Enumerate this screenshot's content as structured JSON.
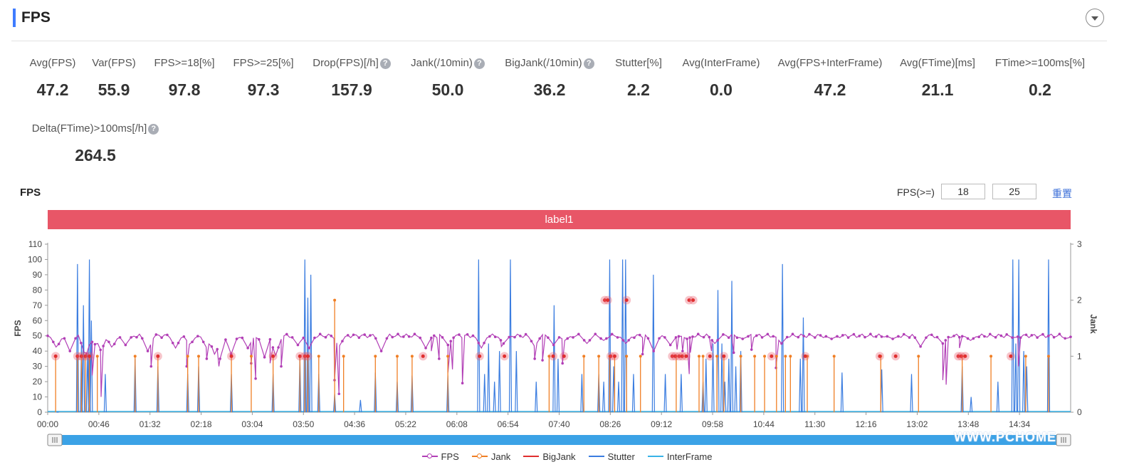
{
  "header": {
    "title": "FPS"
  },
  "metrics": [
    {
      "label": "Avg(FPS)",
      "value": "47.2",
      "help": false
    },
    {
      "label": "Var(FPS)",
      "value": "55.9",
      "help": false
    },
    {
      "label": "FPS>=18[%]",
      "value": "97.8",
      "help": false
    },
    {
      "label": "FPS>=25[%]",
      "value": "97.3",
      "help": false
    },
    {
      "label": "Drop(FPS)[/h]",
      "value": "157.9",
      "help": true
    },
    {
      "label": "Jank(/10min)",
      "value": "50.0",
      "help": true
    },
    {
      "label": "BigJank(/10min)",
      "value": "36.2",
      "help": true
    },
    {
      "label": "Stutter[%]",
      "value": "2.2",
      "help": false
    },
    {
      "label": "Avg(InterFrame)",
      "value": "0.0",
      "help": false
    },
    {
      "label": "Avg(FPS+InterFrame)",
      "value": "47.2",
      "help": false
    },
    {
      "label": "Avg(FTime)[ms]",
      "value": "21.1",
      "help": false
    },
    {
      "label": "FTime>=100ms[%]",
      "value": "0.2",
      "help": false
    },
    {
      "label": "Delta(FTime)>100ms[/h]",
      "value": "264.5",
      "help": true
    }
  ],
  "help_glyph": "?",
  "chart_panel": {
    "title": "FPS",
    "threshold_label": "FPS(>=)",
    "threshold_low": "18",
    "threshold_high": "25",
    "reset_label": "重置",
    "label_bar": "label1"
  },
  "watermark": "WWW.PCHOME",
  "chart_data": {
    "type": "line",
    "ylabel": "FPS",
    "y2label": "Jank",
    "ylim": [
      0,
      110
    ],
    "y2lim": [
      0,
      3
    ],
    "yticks": [
      0,
      10,
      20,
      30,
      40,
      50,
      60,
      70,
      80,
      90,
      100,
      110
    ],
    "y2ticks": [
      0,
      1,
      2,
      3
    ],
    "xlim_seconds": [
      0,
      920
    ],
    "xticks": [
      "00:00",
      "00:46",
      "01:32",
      "02:18",
      "03:04",
      "03:50",
      "04:36",
      "05:22",
      "06:08",
      "06:54",
      "07:40",
      "08:26",
      "09:12",
      "09:58",
      "10:44",
      "11:30",
      "12:16",
      "13:02",
      "13:48",
      "14:34"
    ],
    "grid": false,
    "legend_position": "bottom",
    "series_styles": [
      {
        "name": "FPS",
        "color": "#b23fb6",
        "axis": "left"
      },
      {
        "name": "Jank",
        "color": "#f07f25",
        "axis": "right"
      },
      {
        "name": "BigJank",
        "color": "#e02f2f",
        "axis": "right"
      },
      {
        "name": "Stutter",
        "color": "#3b7de0",
        "axis": "left"
      },
      {
        "name": "InterFrame",
        "color": "#38b3e8",
        "axis": "left"
      }
    ],
    "fps_baseline": 50,
    "fps_dips": [
      [
        8,
        42
      ],
      [
        20,
        40
      ],
      [
        34,
        36
      ],
      [
        42,
        44
      ],
      [
        48,
        40
      ],
      [
        58,
        42
      ],
      [
        70,
        44
      ],
      [
        90,
        40
      ],
      [
        115,
        42
      ],
      [
        128,
        44
      ],
      [
        143,
        42
      ],
      [
        150,
        38
      ],
      [
        155,
        35
      ],
      [
        165,
        38
      ],
      [
        180,
        42
      ],
      [
        195,
        36
      ],
      [
        205,
        37
      ],
      [
        225,
        44
      ],
      [
        235,
        42
      ],
      [
        262,
        43
      ],
      [
        300,
        40
      ],
      [
        340,
        42
      ],
      [
        360,
        44
      ],
      [
        390,
        42
      ],
      [
        410,
        45
      ],
      [
        438,
        43
      ],
      [
        455,
        44
      ],
      [
        465,
        47
      ],
      [
        485,
        45
      ],
      [
        500,
        47
      ],
      [
        520,
        45
      ],
      [
        545,
        40
      ],
      [
        560,
        44
      ],
      [
        575,
        48
      ],
      [
        600,
        45
      ],
      [
        625,
        48
      ],
      [
        660,
        45
      ],
      [
        705,
        48
      ],
      [
        760,
        48
      ],
      [
        785,
        43
      ],
      [
        805,
        45
      ],
      [
        830,
        47
      ],
      [
        870,
        49
      ],
      [
        916,
        48
      ]
    ],
    "fps_drops": [
      [
        40,
        24
      ],
      [
        48,
        10
      ],
      [
        93,
        30
      ],
      [
        125,
        30
      ],
      [
        143,
        35
      ],
      [
        154,
        30
      ],
      [
        183,
        32
      ],
      [
        187,
        22
      ],
      [
        200,
        32
      ],
      [
        210,
        30
      ],
      [
        258,
        21
      ],
      [
        262,
        12
      ],
      [
        345,
        40
      ],
      [
        352,
        35
      ],
      [
        360,
        26
      ],
      [
        364,
        28
      ],
      [
        373,
        19
      ],
      [
        408,
        43
      ],
      [
        438,
        35
      ],
      [
        445,
        34
      ],
      [
        463,
        32
      ],
      [
        535,
        38
      ],
      [
        566,
        41
      ],
      [
        571,
        40
      ],
      [
        577,
        25
      ],
      [
        578,
        39
      ],
      [
        597,
        40
      ],
      [
        617,
        39
      ],
      [
        633,
        41
      ],
      [
        655,
        29
      ],
      [
        805,
        21
      ],
      [
        808,
        18
      ],
      [
        820,
        42
      ],
      [
        873,
        30
      ]
    ],
    "jank_points": [
      [
        8,
        1
      ],
      [
        30,
        1
      ],
      [
        34,
        1
      ],
      [
        38,
        1
      ],
      [
        42,
        1
      ],
      [
        50,
        1
      ],
      [
        88,
        1
      ],
      [
        111,
        1
      ],
      [
        141,
        1
      ],
      [
        152,
        1
      ],
      [
        185,
        1
      ],
      [
        205,
        1
      ],
      [
        227,
        1
      ],
      [
        254,
        1
      ],
      [
        259,
        1
      ],
      [
        262,
        1
      ],
      [
        298,
        1
      ],
      [
        273,
        1
      ],
      [
        289,
        2
      ],
      [
        330,
        1
      ],
      [
        352,
        1
      ],
      [
        367,
        1
      ],
      [
        403,
        1
      ],
      [
        505,
        1
      ],
      [
        540,
        1
      ],
      [
        555,
        1
      ],
      [
        566,
        1
      ],
      [
        571,
        1
      ],
      [
        583,
        1
      ],
      [
        597,
        1
      ],
      [
        633,
        1
      ],
      [
        656,
        1
      ],
      [
        660,
        1
      ],
      [
        674,
        1
      ],
      [
        681,
        1
      ],
      [
        698,
        1
      ],
      [
        712,
        1
      ],
      [
        722,
        1
      ],
      [
        734,
        1
      ],
      [
        743,
        1
      ],
      [
        748,
        1
      ],
      [
        765,
        1
      ],
      [
        792,
        1
      ],
      [
        839,
        1
      ],
      [
        877,
        1
      ],
      [
        921,
        1
      ],
      [
        950,
        1
      ],
      [
        985,
        1
      ],
      [
        1008,
        1
      ]
    ],
    "bigjank_points": [
      [
        8,
        1
      ],
      [
        30,
        1
      ],
      [
        34,
        1
      ],
      [
        38,
        1
      ],
      [
        42,
        1
      ],
      [
        111,
        1
      ],
      [
        185,
        1
      ],
      [
        227,
        1
      ],
      [
        254,
        1
      ],
      [
        259,
        1
      ],
      [
        262,
        1
      ],
      [
        378,
        1
      ],
      [
        435,
        1
      ],
      [
        460,
        1
      ],
      [
        509,
        1
      ],
      [
        520,
        1
      ],
      [
        561,
        2
      ],
      [
        564,
        2
      ],
      [
        567,
        1
      ],
      [
        571,
        1
      ],
      [
        583,
        2
      ],
      [
        629,
        1
      ],
      [
        632,
        1
      ],
      [
        636,
        1
      ],
      [
        639,
        1
      ],
      [
        643,
        1
      ],
      [
        646,
        2
      ],
      [
        650,
        2
      ],
      [
        667,
        1
      ],
      [
        681,
        1
      ],
      [
        729,
        1
      ],
      [
        763,
        1
      ],
      [
        838,
        1
      ],
      [
        854,
        1
      ],
      [
        917,
        1
      ],
      [
        920,
        1
      ],
      [
        924,
        1
      ],
      [
        970,
        1
      ]
    ],
    "stutter_spikes": [
      [
        10,
        0
      ],
      [
        30,
        97
      ],
      [
        34,
        45
      ],
      [
        36,
        70
      ],
      [
        40,
        40
      ],
      [
        42,
        100
      ],
      [
        44,
        60
      ],
      [
        58,
        25
      ],
      [
        88,
        35
      ],
      [
        111,
        30
      ],
      [
        141,
        25
      ],
      [
        152,
        30
      ],
      [
        185,
        25
      ],
      [
        227,
        25
      ],
      [
        254,
        36
      ],
      [
        259,
        100
      ],
      [
        262,
        75
      ],
      [
        265,
        90
      ],
      [
        273,
        25
      ],
      [
        289,
        12
      ],
      [
        315,
        8
      ],
      [
        330,
        26
      ],
      [
        352,
        20
      ],
      [
        367,
        24
      ],
      [
        403,
        24
      ],
      [
        434,
        100
      ],
      [
        440,
        25
      ],
      [
        444,
        45
      ],
      [
        450,
        20
      ],
      [
        455,
        40
      ],
      [
        466,
        100
      ],
      [
        472,
        40
      ],
      [
        492,
        20
      ],
      [
        510,
        70
      ],
      [
        514,
        35
      ],
      [
        538,
        25
      ],
      [
        555,
        25
      ],
      [
        560,
        20
      ],
      [
        566,
        100
      ],
      [
        570,
        30
      ],
      [
        575,
        20
      ],
      [
        579,
        100
      ],
      [
        582,
        100
      ],
      [
        590,
        25
      ],
      [
        610,
        90
      ],
      [
        622,
        25
      ],
      [
        638,
        25
      ],
      [
        660,
        20
      ],
      [
        663,
        35
      ],
      [
        670,
        45
      ],
      [
        675,
        80
      ],
      [
        679,
        45
      ],
      [
        682,
        20
      ],
      [
        686,
        35
      ],
      [
        689,
        86
      ],
      [
        693,
        30
      ],
      [
        698,
        40
      ],
      [
        740,
        97
      ],
      [
        758,
        35
      ],
      [
        761,
        62
      ],
      [
        800,
        26
      ],
      [
        840,
        28
      ],
      [
        870,
        25
      ],
      [
        921,
        30
      ],
      [
        930,
        10
      ],
      [
        957,
        20
      ],
      [
        972,
        100
      ],
      [
        975,
        45
      ],
      [
        978,
        100
      ],
      [
        983,
        40
      ],
      [
        986,
        30
      ],
      [
        1008,
        100
      ]
    ]
  }
}
